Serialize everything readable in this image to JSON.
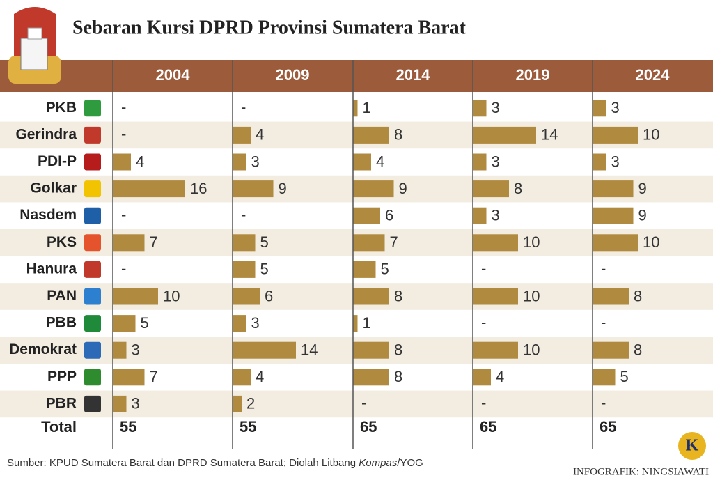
{
  "chart_data": {
    "type": "bar",
    "title": "Sebaran Kursi DPRD Provinsi Sumatera Barat",
    "categories": [
      "PKB",
      "Gerindra",
      "PDI-P",
      "Golkar",
      "Nasdem",
      "PKS",
      "Hanura",
      "PAN",
      "PBB",
      "Demokrat",
      "PPP",
      "PBR"
    ],
    "series": [
      {
        "name": "2004",
        "color": "#b08a3e",
        "values": [
          null,
          null,
          4,
          16,
          null,
          7,
          null,
          10,
          5,
          3,
          7,
          3
        ],
        "total": 55
      },
      {
        "name": "2009",
        "color": "#b08a3e",
        "values": [
          null,
          4,
          3,
          9,
          null,
          5,
          5,
          6,
          3,
          14,
          4,
          2
        ],
        "total": 55
      },
      {
        "name": "2014",
        "color": "#b08a3e",
        "values": [
          1,
          8,
          4,
          9,
          6,
          7,
          5,
          8,
          1,
          8,
          8,
          null
        ],
        "total": 65
      },
      {
        "name": "2019",
        "color": "#b08a3e",
        "values": [
          3,
          14,
          3,
          8,
          3,
          10,
          null,
          10,
          null,
          10,
          4,
          null
        ],
        "total": 65
      },
      {
        "name": "2024",
        "color": "#b08a3e",
        "values": [
          3,
          10,
          3,
          9,
          9,
          10,
          null,
          8,
          null,
          8,
          5,
          null
        ],
        "total": 65
      }
    ],
    "null_label": "-",
    "total_label": "Total",
    "source": [
      "Sumber: KPUD Sumatera Barat  dan DPRD Sumatera Barat; Diolah Litbang ",
      "Kompas",
      "/YOG"
    ],
    "credit": "INFOGRAFIK: NINGSIAWATI",
    "logo": "K"
  }
}
